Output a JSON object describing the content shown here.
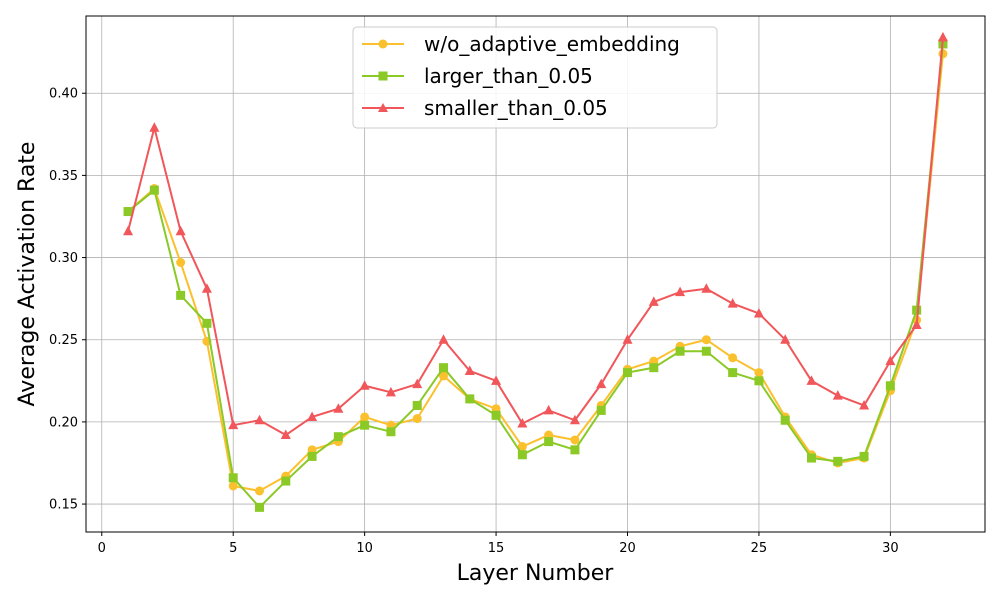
{
  "chart_data": {
    "type": "line",
    "xlabel": "Layer Number",
    "ylabel": "Average Activation Rate",
    "xlim": [
      -0.6,
      33.6
    ],
    "ylim": [
      0.133,
      0.447
    ],
    "xticks": [
      0,
      5,
      10,
      15,
      20,
      25,
      30
    ],
    "yticks": [
      0.15,
      0.2,
      0.25,
      0.3,
      0.35,
      0.4
    ],
    "ytick_labels": [
      "0.15",
      "0.20",
      "0.25",
      "0.30",
      "0.35",
      "0.40"
    ],
    "grid": true,
    "legend_position": "upper-center",
    "x": [
      1,
      2,
      3,
      4,
      5,
      6,
      7,
      8,
      9,
      10,
      11,
      12,
      13,
      14,
      15,
      16,
      17,
      18,
      19,
      20,
      21,
      22,
      23,
      24,
      25,
      26,
      27,
      28,
      29,
      30,
      31,
      32
    ],
    "series": [
      {
        "name": "w/o_adaptive_embedding",
        "color": "#FBC02D",
        "marker": "circle",
        "values": [
          0.328,
          0.342,
          0.297,
          0.249,
          0.161,
          0.158,
          0.167,
          0.183,
          0.188,
          0.203,
          0.198,
          0.202,
          0.228,
          0.214,
          0.208,
          0.185,
          0.192,
          0.189,
          0.21,
          0.232,
          0.237,
          0.246,
          0.25,
          0.239,
          0.23,
          0.203,
          0.18,
          0.175,
          0.178,
          0.219,
          0.262,
          0.424
        ]
      },
      {
        "name": "larger_than_0.05",
        "color": "#8BC926",
        "marker": "square",
        "values": [
          0.328,
          0.341,
          0.277,
          0.26,
          0.166,
          0.148,
          0.164,
          0.179,
          0.191,
          0.198,
          0.194,
          0.21,
          0.233,
          0.214,
          0.204,
          0.18,
          0.188,
          0.183,
          0.207,
          0.23,
          0.233,
          0.243,
          0.243,
          0.23,
          0.225,
          0.201,
          0.178,
          0.176,
          0.179,
          0.222,
          0.268,
          0.43
        ]
      },
      {
        "name": "smaller_than_0.05",
        "color": "#F0565A",
        "marker": "triangle",
        "values": [
          0.316,
          0.379,
          0.316,
          0.281,
          0.198,
          0.201,
          0.192,
          0.203,
          0.208,
          0.222,
          0.218,
          0.223,
          0.25,
          0.231,
          0.225,
          0.199,
          0.207,
          0.201,
          0.223,
          0.25,
          0.273,
          0.279,
          0.281,
          0.272,
          0.266,
          0.25,
          0.225,
          0.216,
          0.21,
          0.237,
          0.259,
          0.434
        ]
      }
    ]
  }
}
